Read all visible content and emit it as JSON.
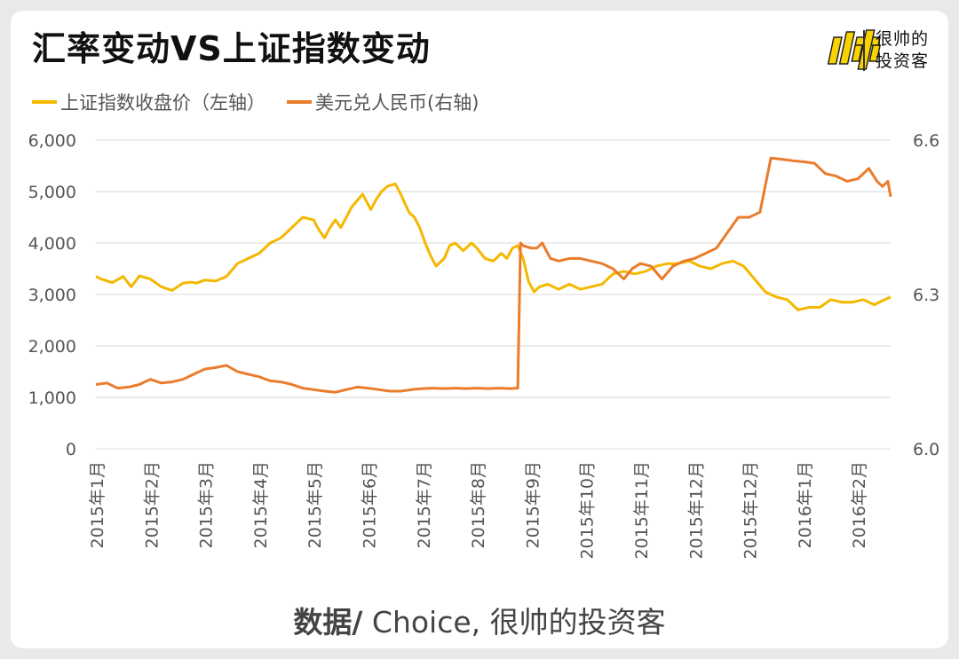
{
  "header": {
    "title": "汇率变动VS上证指数变动",
    "brand_line1": "很帅的",
    "brand_line2": "投资客"
  },
  "source": {
    "prefix": "数据/",
    "text": " Choice, 很帅的投资客"
  },
  "colors": {
    "shanghai": "#f4b800",
    "usdcny": "#ea7c2c",
    "grid": "#d9d9d9",
    "logo_yellow": "#f8d300"
  },
  "chart_data": {
    "type": "line",
    "legend_position": "top-left",
    "grid": true,
    "x_tick_labels": [
      "2015年1月",
      "2015年2月",
      "2015年3月",
      "2015年4月",
      "2015年5月",
      "2015年6月",
      "2015年7月",
      "2015年8月",
      "2015年9月",
      "2015年10月",
      "2015年11月",
      "2015年12月",
      "2015年12月",
      "2016年1月",
      "2016年2月"
    ],
    "y_left": {
      "ylim": [
        0,
        6000
      ],
      "tick_labels": [
        "0",
        "1,000",
        "2,000",
        "3,000",
        "4,000",
        "5,000",
        "6,000"
      ],
      "ticks": [
        0,
        1000,
        2000,
        3000,
        4000,
        5000,
        6000
      ]
    },
    "y_right": {
      "ylim": [
        6.0,
        6.6
      ],
      "tick_labels": [
        "6.0",
        "6.3",
        "6.6"
      ],
      "ticks": [
        6.0,
        6.3,
        6.6
      ]
    },
    "x_range_months": [
      0,
      14.6
    ],
    "series": [
      {
        "name": "上证指数收盘价（左轴）",
        "axis": "left",
        "color": "#f4b800",
        "x": [
          0,
          0.1,
          0.3,
          0.5,
          0.65,
          0.8,
          1.0,
          1.2,
          1.4,
          1.6,
          1.75,
          1.85,
          2.0,
          2.2,
          2.4,
          2.6,
          2.8,
          3.0,
          3.2,
          3.4,
          3.6,
          3.8,
          4.0,
          4.1,
          4.2,
          4.3,
          4.4,
          4.5,
          4.7,
          4.9,
          5.05,
          5.15,
          5.25,
          5.35,
          5.5,
          5.6,
          5.75,
          5.85,
          5.95,
          6.05,
          6.15,
          6.25,
          6.4,
          6.5,
          6.6,
          6.75,
          6.9,
          7.0,
          7.15,
          7.3,
          7.45,
          7.55,
          7.65,
          7.75,
          7.85,
          7.95,
          8.05,
          8.15,
          8.3,
          8.5,
          8.7,
          8.9,
          9.1,
          9.3,
          9.5,
          9.7,
          9.9,
          10.1,
          10.3,
          10.5,
          10.7,
          10.9,
          11.1,
          11.3,
          11.5,
          11.7,
          11.9,
          12.1,
          12.3,
          12.5,
          12.7,
          12.9,
          13.1,
          13.3,
          13.5,
          13.7,
          13.9,
          14.1,
          14.3,
          14.45,
          14.6
        ],
        "values": [
          3350,
          3300,
          3230,
          3350,
          3150,
          3360,
          3300,
          3150,
          3080,
          3220,
          3240,
          3220,
          3280,
          3260,
          3350,
          3600,
          3700,
          3800,
          4000,
          4100,
          4300,
          4500,
          4450,
          4250,
          4100,
          4300,
          4450,
          4300,
          4700,
          4950,
          4650,
          4850,
          5000,
          5100,
          5150,
          4950,
          4600,
          4500,
          4300,
          4000,
          3750,
          3550,
          3700,
          3950,
          4000,
          3850,
          4000,
          3900,
          3700,
          3650,
          3800,
          3700,
          3900,
          3950,
          3700,
          3250,
          3050,
          3150,
          3200,
          3100,
          3200,
          3100,
          3150,
          3200,
          3400,
          3450,
          3400,
          3450,
          3550,
          3600,
          3600,
          3650,
          3550,
          3500,
          3600,
          3650,
          3550,
          3300,
          3050,
          2950,
          2900,
          2700,
          2750,
          2750,
          2900,
          2850,
          2850,
          2900,
          2800,
          2880,
          2950
        ]
      },
      {
        "name": "美元兑人民币(右轴)",
        "axis": "right",
        "color": "#ea7c2c",
        "x": [
          0,
          0.2,
          0.4,
          0.6,
          0.8,
          1.0,
          1.2,
          1.4,
          1.6,
          1.8,
          2.0,
          2.2,
          2.4,
          2.6,
          2.8,
          3.0,
          3.2,
          3.4,
          3.6,
          3.8,
          4.0,
          4.2,
          4.4,
          4.6,
          4.8,
          5.0,
          5.2,
          5.4,
          5.6,
          5.8,
          6.0,
          6.2,
          6.4,
          6.6,
          6.8,
          7.0,
          7.2,
          7.4,
          7.6,
          7.75,
          7.8,
          7.85,
          8.0,
          8.1,
          8.2,
          8.35,
          8.5,
          8.7,
          8.9,
          9.1,
          9.3,
          9.5,
          9.7,
          9.85,
          10.0,
          10.2,
          10.4,
          10.6,
          10.8,
          11.0,
          11.2,
          11.4,
          11.6,
          11.8,
          12.0,
          12.2,
          12.4,
          12.6,
          12.8,
          13.0,
          13.2,
          13.4,
          13.6,
          13.8,
          14.0,
          14.2,
          14.35,
          14.45,
          14.55,
          14.6
        ],
        "values": [
          6.125,
          6.128,
          6.118,
          6.12,
          6.125,
          6.135,
          6.128,
          6.13,
          6.135,
          6.145,
          6.155,
          6.158,
          6.162,
          6.15,
          6.145,
          6.14,
          6.132,
          6.13,
          6.125,
          6.118,
          6.115,
          6.112,
          6.11,
          6.115,
          6.12,
          6.118,
          6.115,
          6.112,
          6.112,
          6.115,
          6.117,
          6.118,
          6.117,
          6.118,
          6.117,
          6.118,
          6.117,
          6.118,
          6.117,
          6.118,
          6.4,
          6.395,
          6.39,
          6.39,
          6.4,
          6.37,
          6.365,
          6.37,
          6.37,
          6.365,
          6.36,
          6.35,
          6.33,
          6.35,
          6.36,
          6.355,
          6.33,
          6.355,
          6.365,
          6.37,
          6.38,
          6.39,
          6.42,
          6.45,
          6.45,
          6.46,
          6.565,
          6.563,
          6.56,
          6.558,
          6.555,
          6.535,
          6.53,
          6.52,
          6.525,
          6.545,
          6.52,
          6.51,
          6.52,
          6.49
        ]
      }
    ]
  }
}
